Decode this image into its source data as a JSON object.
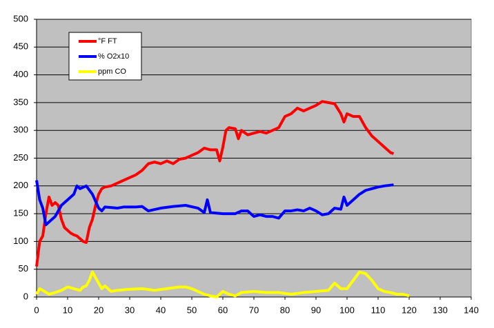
{
  "chart_data": {
    "type": "line",
    "xlim": [
      0,
      140
    ],
    "xticks": [
      0,
      10,
      20,
      30,
      40,
      50,
      60,
      70,
      80,
      90,
      100,
      110,
      120,
      130,
      140
    ],
    "ylim": [
      0,
      500
    ],
    "yticks": [
      0,
      50,
      100,
      150,
      200,
      250,
      300,
      350,
      400,
      450,
      500
    ],
    "grid": true,
    "legend": "upper-left",
    "series": [
      {
        "name": "°F FT",
        "color": "#ff0000",
        "x": [
          0,
          1,
          2,
          3,
          4,
          5,
          6,
          7,
          8,
          9,
          10,
          11,
          12,
          13,
          14,
          15,
          16,
          17,
          18,
          19,
          20,
          21,
          22,
          24,
          26,
          28,
          30,
          32,
          34,
          36,
          38,
          40,
          42,
          44,
          46,
          48,
          50,
          52,
          54,
          56,
          58,
          59,
          60,
          61,
          62,
          64,
          65,
          66,
          68,
          70,
          72,
          74,
          76,
          78,
          80,
          82,
          84,
          86,
          88,
          90,
          92,
          94,
          96,
          98,
          99,
          100,
          102,
          104,
          106,
          108,
          110,
          112,
          114,
          115
        ],
        "values": [
          55,
          100,
          110,
          150,
          180,
          165,
          170,
          165,
          140,
          125,
          120,
          115,
          112,
          110,
          105,
          100,
          98,
          125,
          140,
          165,
          185,
          195,
          198,
          200,
          205,
          210,
          215,
          220,
          228,
          240,
          243,
          240,
          245,
          240,
          248,
          250,
          255,
          260,
          268,
          265,
          265,
          245,
          270,
          300,
          305,
          303,
          285,
          300,
          292,
          295,
          298,
          295,
          300,
          305,
          325,
          330,
          340,
          335,
          340,
          345,
          352,
          350,
          348,
          330,
          315,
          330,
          325,
          325,
          305,
          290,
          280,
          270,
          260,
          258
        ]
      },
      {
        "name": "% O2x10",
        "color": "#0000ff",
        "x": [
          0,
          1,
          2,
          3,
          4,
          6,
          8,
          10,
          12,
          13,
          14,
          16,
          18,
          20,
          21,
          22,
          26,
          28,
          32,
          34,
          36,
          40,
          44,
          48,
          52,
          54,
          55,
          56,
          60,
          64,
          66,
          68,
          70,
          72,
          74,
          76,
          78,
          80,
          82,
          84,
          86,
          88,
          90,
          92,
          94,
          96,
          98,
          99,
          100,
          102,
          104,
          106,
          108,
          110,
          112,
          115
        ],
        "values": [
          210,
          175,
          160,
          130,
          135,
          145,
          165,
          175,
          185,
          200,
          195,
          200,
          185,
          160,
          155,
          162,
          160,
          162,
          162,
          163,
          155,
          160,
          163,
          165,
          160,
          152,
          175,
          152,
          150,
          150,
          155,
          155,
          145,
          148,
          145,
          145,
          142,
          155,
          155,
          157,
          155,
          160,
          155,
          148,
          150,
          160,
          158,
          180,
          165,
          175,
          185,
          192,
          195,
          198,
          200,
          202
        ]
      },
      {
        "name": "ppm CO",
        "color": "#ffff00",
        "x": [
          0,
          1,
          2,
          4,
          6,
          8,
          10,
          12,
          14,
          15,
          16,
          17,
          18,
          19,
          20,
          21,
          22,
          24,
          26,
          30,
          34,
          38,
          42,
          46,
          48,
          50,
          52,
          54,
          56,
          58,
          60,
          62,
          64,
          66,
          70,
          74,
          78,
          82,
          86,
          90,
          94,
          96,
          97,
          98,
          100,
          102,
          104,
          106,
          108,
          110,
          112,
          114,
          116,
          118,
          120
        ],
        "values": [
          5,
          15,
          12,
          5,
          8,
          12,
          18,
          15,
          12,
          18,
          20,
          30,
          45,
          35,
          25,
          15,
          20,
          10,
          12,
          14,
          15,
          12,
          15,
          18,
          18,
          15,
          10,
          5,
          2,
          0,
          10,
          5,
          2,
          8,
          10,
          8,
          8,
          5,
          8,
          10,
          12,
          25,
          20,
          15,
          15,
          30,
          45,
          42,
          30,
          15,
          10,
          8,
          5,
          5,
          2
        ]
      }
    ]
  }
}
